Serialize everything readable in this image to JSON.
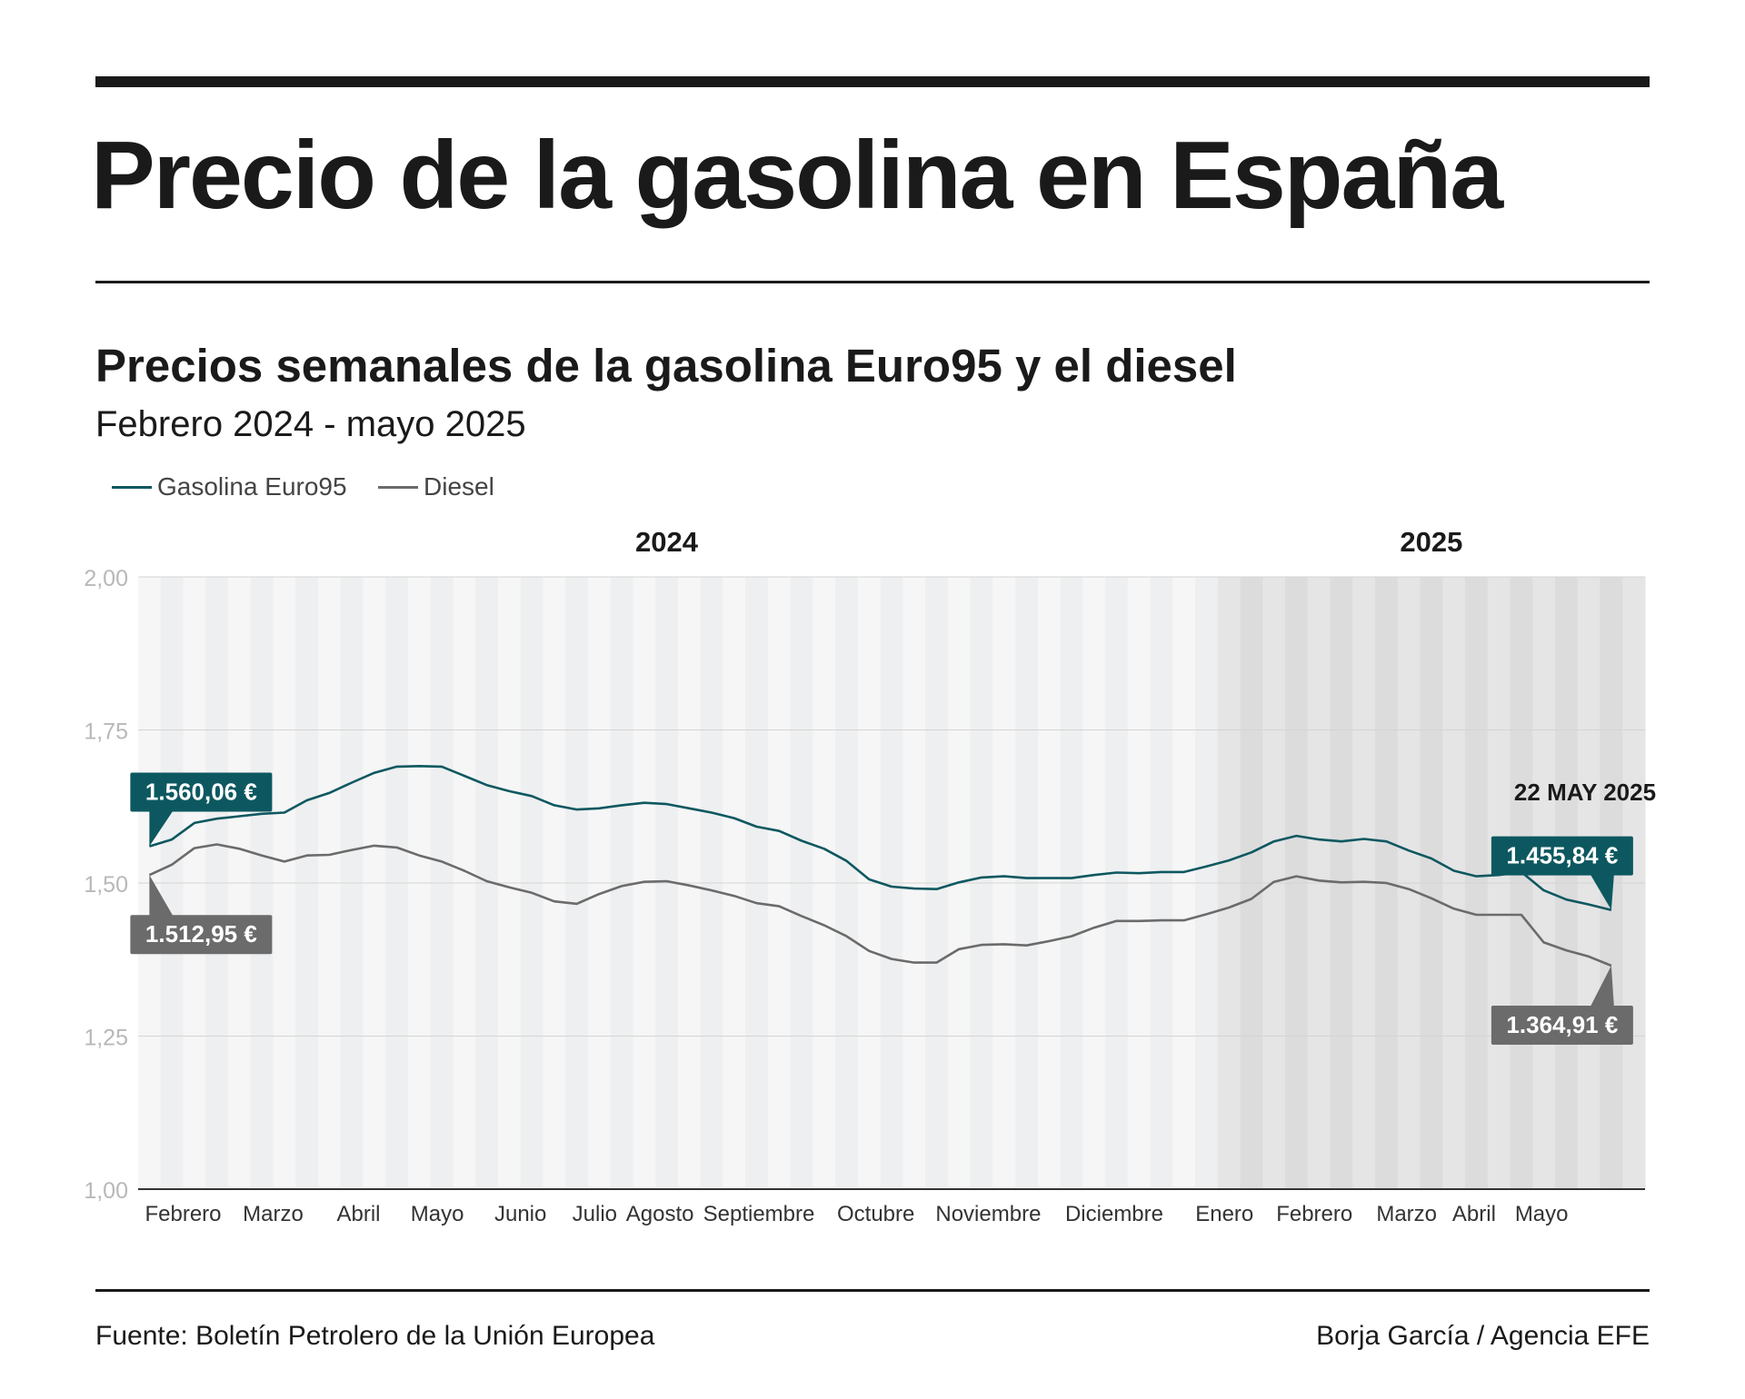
{
  "header": {
    "title": "Precio de la gasolina en España",
    "subtitle": "Precios semanales de la gasolina Euro95 y el diesel",
    "period": "Febrero 2024 - mayo 2025"
  },
  "footer": {
    "source": "Fuente: Boletín Petrolero de la Unión Europea",
    "credit": "Borja García / Agencia EFE"
  },
  "colors": {
    "gasolina": "#0d5860",
    "diesel": "#6b6b6b",
    "band_2024_light": "#f6f6f7",
    "band_2024_dark": "#eeeff0",
    "band_2025_light": "#e5e5e6",
    "band_2025_dark": "#dcdcdd"
  },
  "chart_data": {
    "type": "line",
    "ylim": [
      1.0,
      2.0
    ],
    "yticks": [
      "2,00",
      "1,75",
      "1,50",
      "1,25",
      "1,00"
    ],
    "grid": true,
    "legend_position": "top-left",
    "week_count": 67,
    "year_labels": [
      {
        "label": "2024",
        "week": 23
      },
      {
        "label": "2025",
        "week": 57
      }
    ],
    "shaded_from_week": 48,
    "month_labels": [
      {
        "label": "Febrero",
        "week": 1.5
      },
      {
        "label": "Marzo",
        "week": 5.5
      },
      {
        "label": "Abril",
        "week": 9.3
      },
      {
        "label": "Mayo",
        "week": 12.8
      },
      {
        "label": "Junio",
        "week": 16.5
      },
      {
        "label": "Julio",
        "week": 19.8
      },
      {
        "label": "Agosto",
        "week": 22.7
      },
      {
        "label": "Septiembre",
        "week": 27.1
      },
      {
        "label": "Octubre",
        "week": 32.3
      },
      {
        "label": "Noviembre",
        "week": 37.3
      },
      {
        "label": "Diciembre",
        "week": 42.9
      },
      {
        "label": "Enero",
        "week": 47.8
      },
      {
        "label": "Febrero",
        "week": 51.8
      },
      {
        "label": "Marzo",
        "week": 55.9
      },
      {
        "label": "Abril",
        "week": 58.9
      },
      {
        "label": "Mayo",
        "week": 61.9
      }
    ],
    "series": [
      {
        "name": "Gasolina Euro95",
        "values": [
          1.56,
          1.571,
          1.598,
          1.605,
          1.609,
          1.613,
          1.615,
          1.635,
          1.647,
          1.664,
          1.68,
          1.69,
          1.691,
          1.69,
          1.675,
          1.66,
          1.65,
          1.642,
          1.627,
          1.62,
          1.622,
          1.627,
          1.631,
          1.629,
          1.622,
          1.615,
          1.606,
          1.592,
          1.585,
          1.569,
          1.556,
          1.536,
          1.506,
          1.494,
          1.491,
          1.49,
          1.501,
          1.509,
          1.511,
          1.508,
          1.508,
          1.508,
          1.513,
          1.517,
          1.516,
          1.518,
          1.518,
          1.527,
          1.537,
          1.55,
          1.568,
          1.577,
          1.571,
          1.568,
          1.572,
          1.568,
          1.553,
          1.54,
          1.52,
          1.511,
          1.513,
          1.518,
          1.488,
          1.473,
          1.465,
          1.456
        ]
      },
      {
        "name": "Diesel",
        "values": [
          1.513,
          1.53,
          1.557,
          1.563,
          1.556,
          1.545,
          1.535,
          1.545,
          1.546,
          1.554,
          1.561,
          1.558,
          1.545,
          1.535,
          1.52,
          1.503,
          1.493,
          1.484,
          1.47,
          1.466,
          1.482,
          1.495,
          1.502,
          1.503,
          1.496,
          1.488,
          1.479,
          1.467,
          1.462,
          1.446,
          1.431,
          1.413,
          1.389,
          1.376,
          1.37,
          1.37,
          1.392,
          1.399,
          1.4,
          1.398,
          1.405,
          1.413,
          1.427,
          1.438,
          1.438,
          1.439,
          1.439,
          1.449,
          1.46,
          1.474,
          1.502,
          1.511,
          1.504,
          1.501,
          1.502,
          1.5,
          1.49,
          1.475,
          1.458,
          1.448,
          1.448,
          1.448,
          1.403,
          1.39,
          1.38,
          1.365
        ]
      }
    ],
    "callouts": [
      {
        "series": "Gasolina Euro95",
        "label": "1.560,06 €",
        "point": "first"
      },
      {
        "series": "Diesel",
        "label": "1.512,95 €",
        "point": "first"
      },
      {
        "series": "Gasolina Euro95",
        "label": "1.455,84 €",
        "point": "last"
      },
      {
        "series": "Diesel",
        "label": "1.364,91 €",
        "point": "last"
      }
    ],
    "date_label": "22 MAY 2025"
  }
}
